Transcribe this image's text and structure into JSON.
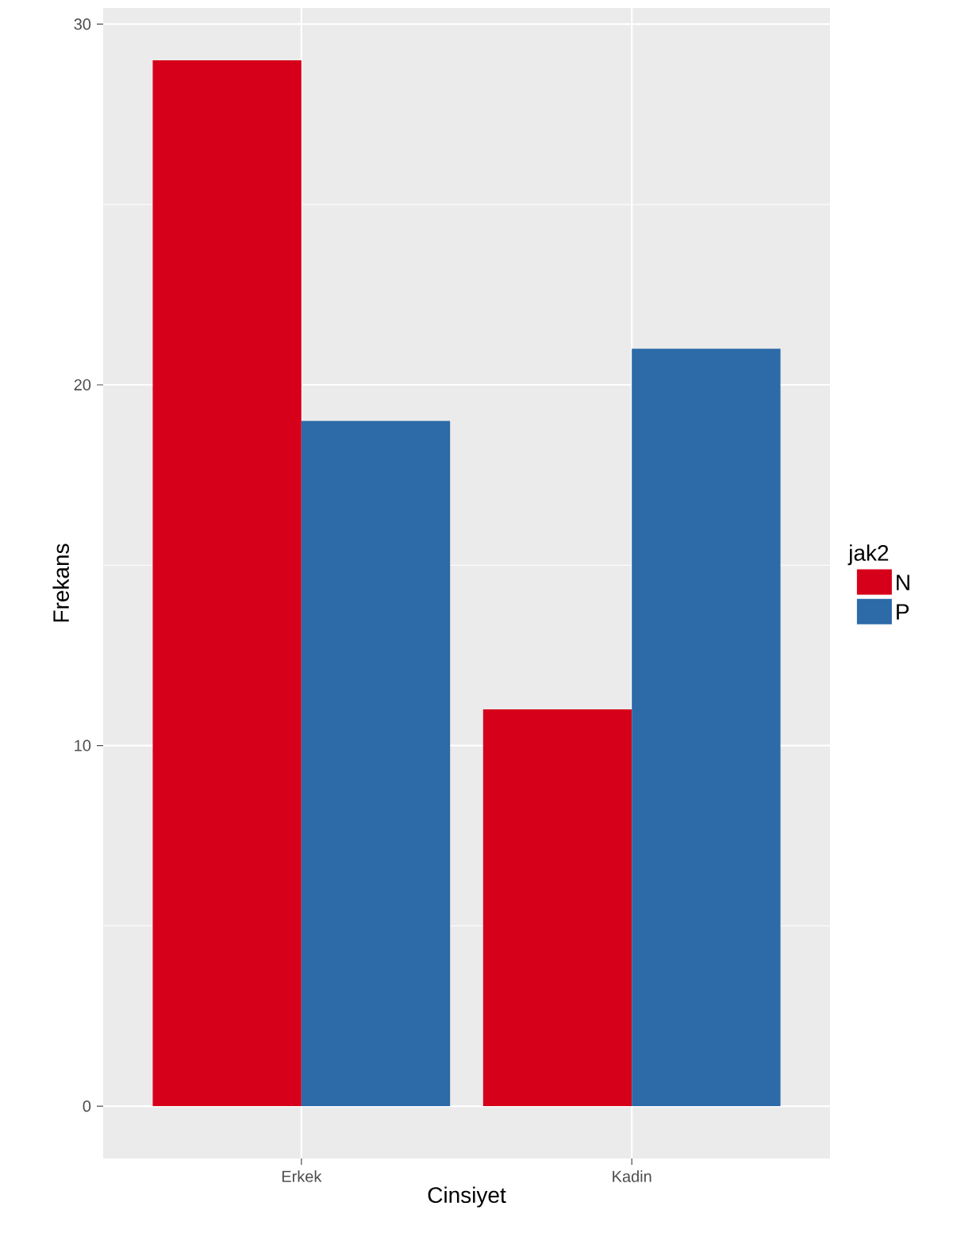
{
  "chart_data": {
    "type": "bar",
    "xlabel": "Cinsiyet",
    "ylabel": "Frekans",
    "legend_title": "jak2",
    "categories": [
      "Erkek",
      "Kadin"
    ],
    "series": [
      {
        "name": "N",
        "color": "#d7001a",
        "values": [
          29,
          11
        ]
      },
      {
        "name": "P",
        "color": "#2c6aa8",
        "values": [
          19,
          21
        ]
      }
    ],
    "ylim": [
      -1.45,
      30.45
    ],
    "yticks": [
      0,
      10,
      20,
      30
    ],
    "grid": true,
    "legend": "right"
  }
}
